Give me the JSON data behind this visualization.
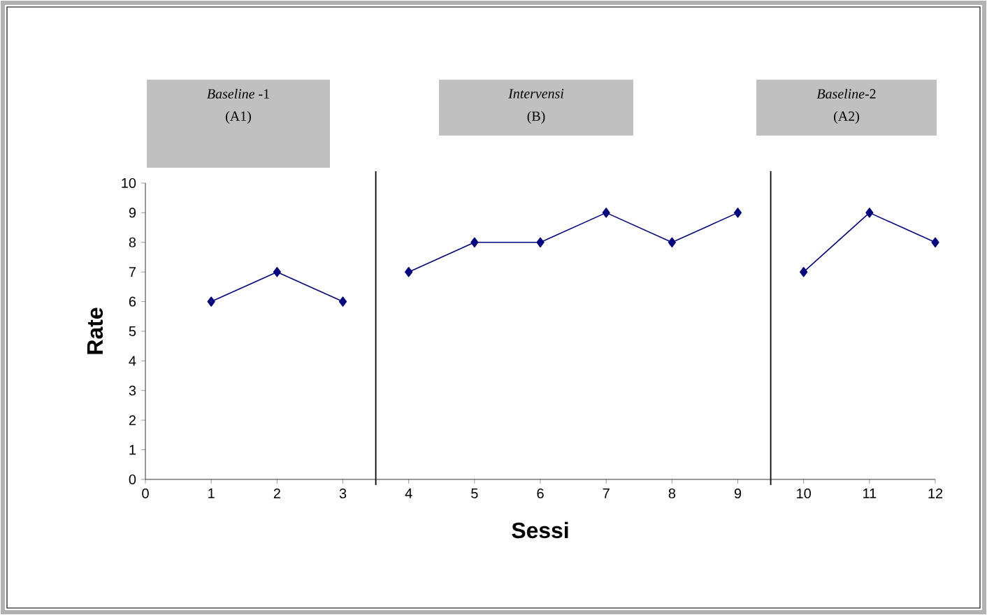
{
  "chart_data": {
    "type": "line",
    "xlabel": "Sessi",
    "ylabel": "Rate",
    "xlim": [
      0,
      12
    ],
    "ylim": [
      0,
      10
    ],
    "xticks": [
      0,
      1,
      2,
      3,
      4,
      5,
      6,
      7,
      8,
      9,
      10,
      11,
      12
    ],
    "yticks": [
      0,
      1,
      2,
      3,
      4,
      5,
      6,
      7,
      8,
      9,
      10
    ],
    "marker": "diamond",
    "line_style": "solid",
    "series": [
      {
        "color": "#000080",
        "x": [
          1,
          2,
          3
        ],
        "values": [
          6,
          7,
          6
        ]
      },
      {
        "color": "#000080",
        "x": [
          4,
          5,
          6,
          7,
          8,
          9
        ],
        "values": [
          7,
          8,
          8,
          9,
          8,
          9
        ]
      },
      {
        "color": "#000080",
        "x": [
          10,
          11,
          12
        ],
        "values": [
          7,
          9,
          8
        ]
      }
    ],
    "ref_lines": [
      {
        "axis": "x",
        "value": 3.5,
        "color": "#000000"
      },
      {
        "axis": "x",
        "value": 9.5,
        "color": "#000000"
      }
    ],
    "annotations": [
      "*Baseline* -1",
      "(A1)",
      "*Intervensi*",
      "(B)",
      "*Baseline*-2",
      "(A2)"
    ]
  }
}
